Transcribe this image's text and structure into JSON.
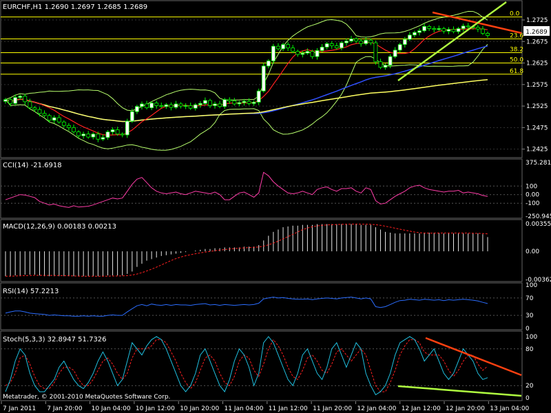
{
  "main": {
    "title": "EURCHF,H1  1.2690 1.2697 1.2685 1.2689",
    "price_box": "1.2689",
    "y_ticks": [
      "1.2725",
      "1.2675",
      "1.2625",
      "1.2575",
      "1.2525",
      "1.2475",
      "1.2425"
    ],
    "fib_levels": [
      "0.0",
      "23.6",
      "38.2",
      "50.0",
      "61.8"
    ]
  },
  "cci": {
    "title": "CCI(14) -21.6918",
    "ticks": [
      "375.2813",
      "100",
      "0.00",
      "-100",
      "-250.945"
    ]
  },
  "macd": {
    "title": "MACD(12,26,9) 0.00183 0.00213",
    "ticks": [
      "0.00355",
      "0.00",
      "-0.00362"
    ]
  },
  "rsi": {
    "title": "RSI(14) 57.2213",
    "ticks": [
      "100",
      "70",
      "30",
      "0"
    ]
  },
  "stoch": {
    "title": "Stoch(5,3,3) 32.8947 51.7326",
    "ticks": [
      "100",
      "80",
      "20",
      "0"
    ]
  },
  "copyright": "Metatrader, © 2001-2010 MetaQuotes Software Corp.",
  "time_axis": [
    "7 Jan 2011",
    "7 Jan 20:00",
    "10 Jan 04:00",
    "10 Jan 12:00",
    "10 Jan 20:00",
    "11 Jan 04:00",
    "11 Jan 12:00",
    "11 Jan 20:00",
    "12 Jan 04:00",
    "12 Jan 12:00",
    "12 Jan 20:00",
    "13 Jan 04:00"
  ],
  "colors": {
    "bull": "#ffffff",
    "bear": "#000000",
    "wick": "#00ff00",
    "boll": "#b8ff6e",
    "ma_red": "#ff2020",
    "ma_blue": "#3050ff",
    "ma_yellow": "#ffff60",
    "fib": "#ffff00",
    "trend_orange": "#ff4010",
    "trend_green": "#b0ff40",
    "cci": "#ff3da8",
    "macd_hist": "#e8e8e8",
    "macd_signal": "#ff2020",
    "rsi": "#2b6dff",
    "stoch_main": "#20c0e0",
    "stoch_signal": "#ff2020"
  },
  "chart_data": {
    "type": "candlestick",
    "ylim": [
      1.241,
      1.2765
    ],
    "fib": [
      1.2732,
      1.2681,
      1.2649,
      1.2625,
      1.2599
    ],
    "close": [
      1.254,
      1.2531,
      1.2545,
      1.2548,
      1.2535,
      1.2521,
      1.2517,
      1.2508,
      1.2503,
      1.2492,
      1.2498,
      1.2488,
      1.248,
      1.2475,
      1.2465,
      1.2456,
      1.246,
      1.2453,
      1.246,
      1.2448,
      1.2452,
      1.2465,
      1.247,
      1.246,
      1.2458,
      1.249,
      1.2512,
      1.2524,
      1.253,
      1.2521,
      1.2532,
      1.2526,
      1.2524,
      1.2528,
      1.2522,
      1.253,
      1.2525,
      1.2526,
      1.252,
      1.2528,
      1.2531,
      1.2538,
      1.2526,
      1.253,
      1.2524,
      1.254,
      1.2537,
      1.253,
      1.2533,
      1.2536,
      1.2531,
      1.2534,
      1.256,
      1.2618,
      1.263,
      1.2664,
      1.2658,
      1.2668,
      1.266,
      1.2652,
      1.2645,
      1.2648,
      1.2652,
      1.264,
      1.2654,
      1.2662,
      1.267,
      1.2665,
      1.266,
      1.2672,
      1.2676,
      1.2681,
      1.2676,
      1.267,
      1.2678,
      1.2672,
      1.2628,
      1.2615,
      1.262,
      1.264,
      1.2655,
      1.2668,
      1.268,
      1.269,
      1.2696,
      1.27,
      1.271,
      1.2705,
      1.2703,
      1.2705,
      1.2699,
      1.2703,
      1.2698,
      1.2705,
      1.2711,
      1.2709,
      1.2708,
      1.2704,
      1.2694,
      1.2689
    ],
    "cci": [
      -60,
      -40,
      -20,
      0,
      -5,
      -20,
      -35,
      -80,
      -100,
      -120,
      -110,
      -130,
      -140,
      -150,
      -130,
      -145,
      -140,
      -135,
      -120,
      -100,
      -80,
      -60,
      -40,
      -50,
      -40,
      40,
      120,
      180,
      200,
      140,
      80,
      40,
      20,
      10,
      20,
      30,
      10,
      0,
      20,
      40,
      30,
      20,
      10,
      30,
      0,
      -60,
      -60,
      -20,
      20,
      30,
      0,
      -30,
      20,
      260,
      220,
      150,
      100,
      60,
      20,
      10,
      20,
      40,
      20,
      0,
      60,
      80,
      90,
      60,
      40,
      70,
      70,
      80,
      40,
      20,
      80,
      60,
      -70,
      -110,
      -100,
      -60,
      -20,
      10,
      40,
      80,
      100,
      110,
      80,
      60,
      50,
      40,
      30,
      40,
      40,
      50,
      20,
      30,
      20,
      10,
      -10,
      -21.7
    ],
    "macd": [
      -0.0032,
      -0.0032,
      -0.0031,
      -0.0031,
      -0.003,
      -0.003,
      -0.003,
      -0.0031,
      -0.0032,
      -0.0032,
      -0.0032,
      -0.0032,
      -0.0032,
      -0.0032,
      -0.0032,
      -0.0032,
      -0.0032,
      -0.0032,
      -0.0032,
      -0.0032,
      -0.0032,
      -0.0031,
      -0.0031,
      -0.0031,
      -0.0031,
      -0.0029,
      -0.0026,
      -0.002,
      -0.0016,
      -0.0012,
      -0.001,
      -0.0008,
      -0.0006,
      -0.0005,
      -0.0004,
      -0.0003,
      -0.0002,
      -0.0001,
      0.0,
      0.0001,
      0.0002,
      0.0003,
      0.0003,
      0.0004,
      0.0004,
      0.0005,
      0.0005,
      0.0005,
      0.0005,
      0.0006,
      0.0006,
      0.0006,
      0.0008,
      0.0014,
      0.002,
      0.0025,
      0.0028,
      0.0031,
      0.0032,
      0.0033,
      0.0033,
      0.0034,
      0.0034,
      0.0034,
      0.0035,
      0.0035,
      0.0035,
      0.0035,
      0.0035,
      0.0035,
      0.0035,
      0.0035,
      0.0035,
      0.0034,
      0.0034,
      0.0034,
      0.0031,
      0.0028,
      0.0025,
      0.0024,
      0.0023,
      0.0023,
      0.0023,
      0.0023,
      0.0023,
      0.0023,
      0.0024,
      0.0024,
      0.0024,
      0.0024,
      0.0023,
      0.0023,
      0.0023,
      0.0023,
      0.0023,
      0.0023,
      0.0023,
      0.0023,
      0.0022,
      0.00183
    ],
    "rsi": [
      35,
      38,
      40,
      40,
      38,
      35,
      34,
      33,
      32,
      30,
      31,
      30,
      29,
      29,
      28,
      28,
      29,
      28,
      29,
      28,
      28,
      30,
      31,
      30,
      30,
      38,
      45,
      52,
      55,
      52,
      56,
      54,
      53,
      55,
      53,
      55,
      54,
      54,
      53,
      55,
      56,
      57,
      54,
      55,
      53,
      55,
      54,
      53,
      54,
      55,
      54,
      55,
      58,
      68,
      70,
      72,
      70,
      71,
      69,
      68,
      67,
      67,
      68,
      66,
      68,
      69,
      70,
      69,
      68,
      70,
      71,
      72,
      70,
      68,
      70,
      68,
      50,
      48,
      50,
      55,
      60,
      64,
      65,
      67,
      66,
      65,
      67,
      66,
      65,
      66,
      64,
      66,
      65,
      66,
      67,
      66,
      65,
      63,
      60,
      57.2
    ],
    "stoch_main": [
      10,
      30,
      60,
      80,
      70,
      40,
      20,
      10,
      10,
      20,
      30,
      50,
      60,
      45,
      30,
      20,
      15,
      25,
      40,
      60,
      75,
      60,
      40,
      20,
      30,
      60,
      90,
      80,
      70,
      85,
      95,
      100,
      95,
      80,
      60,
      40,
      20,
      10,
      20,
      40,
      70,
      80,
      60,
      40,
      20,
      10,
      30,
      60,
      80,
      70,
      50,
      20,
      40,
      90,
      100,
      90,
      70,
      50,
      30,
      20,
      40,
      70,
      80,
      60,
      40,
      30,
      50,
      80,
      90,
      70,
      50,
      70,
      90,
      80,
      40,
      20,
      5,
      10,
      20,
      40,
      70,
      90,
      95,
      100,
      95,
      80,
      60,
      70,
      80,
      60,
      40,
      30,
      40,
      60,
      80,
      70,
      60,
      40,
      30,
      32.9
    ],
    "stoch_signal": [
      20,
      25,
      40,
      65,
      70,
      55,
      35,
      20,
      15,
      15,
      25,
      40,
      50,
      50,
      45,
      30,
      20,
      20,
      30,
      45,
      60,
      65,
      55,
      40,
      30,
      40,
      65,
      80,
      80,
      80,
      85,
      95,
      95,
      90,
      75,
      60,
      40,
      25,
      15,
      25,
      45,
      65,
      70,
      60,
      40,
      25,
      20,
      35,
      60,
      70,
      65,
      45,
      35,
      55,
      80,
      95,
      85,
      70,
      50,
      35,
      30,
      45,
      65,
      70,
      60,
      45,
      40,
      55,
      75,
      80,
      70,
      60,
      70,
      80,
      70,
      45,
      20,
      10,
      10,
      25,
      45,
      70,
      85,
      95,
      95,
      90,
      75,
      70,
      70,
      70,
      60,
      45,
      35,
      45,
      60,
      70,
      70,
      55,
      45,
      51.7
    ]
  }
}
